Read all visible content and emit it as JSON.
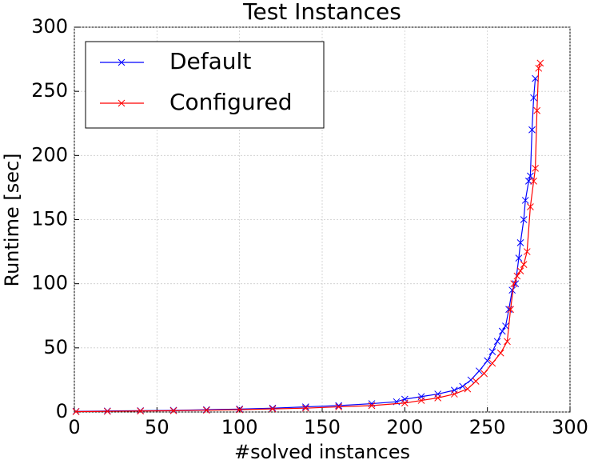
{
  "chart_data": {
    "type": "line",
    "title": "Test Instances",
    "x_label": "#solved instances",
    "y_label": "Runtime [sec]",
    "xlim": [
      0,
      300
    ],
    "xticks": [
      0,
      50,
      100,
      150,
      200,
      250,
      300
    ],
    "ylim": [
      0,
      300
    ],
    "yticks": [
      0,
      50,
      100,
      150,
      200,
      250,
      300
    ],
    "grid": true,
    "legend": "upper left",
    "series": [
      {
        "name": "Default",
        "color": "#0000ff",
        "x": [
          1,
          20,
          40,
          60,
          80,
          100,
          120,
          140,
          160,
          180,
          195,
          200,
          210,
          220,
          230,
          235,
          240,
          245,
          250,
          253,
          256,
          259,
          261,
          263,
          265,
          267,
          269,
          270,
          272,
          273,
          275,
          276,
          277,
          278,
          279
        ],
        "values": [
          0.5,
          0.8,
          1,
          1.3,
          1.8,
          2.3,
          3,
          4,
          5,
          6.5,
          8,
          10,
          12,
          14,
          17,
          20,
          25,
          32,
          40,
          47,
          55,
          63,
          67,
          80,
          95,
          100,
          120,
          132,
          150,
          165,
          180,
          184,
          220,
          245,
          260
        ]
      },
      {
        "name": "Configured",
        "color": "#ff0000",
        "x": [
          1,
          20,
          40,
          60,
          80,
          100,
          120,
          140,
          160,
          180,
          200,
          210,
          220,
          230,
          238,
          243,
          248,
          253,
          258,
          262,
          264,
          266,
          268,
          270,
          272,
          274,
          276,
          278,
          279,
          280,
          281,
          282
        ],
        "values": [
          0.3,
          0.5,
          0.8,
          1,
          1.4,
          1.8,
          2.4,
          3,
          4,
          5,
          7,
          9,
          11,
          14,
          18,
          24,
          30,
          38,
          46,
          55,
          80,
          100,
          106,
          110,
          115,
          125,
          160,
          180,
          190,
          235,
          268,
          272
        ]
      }
    ]
  }
}
